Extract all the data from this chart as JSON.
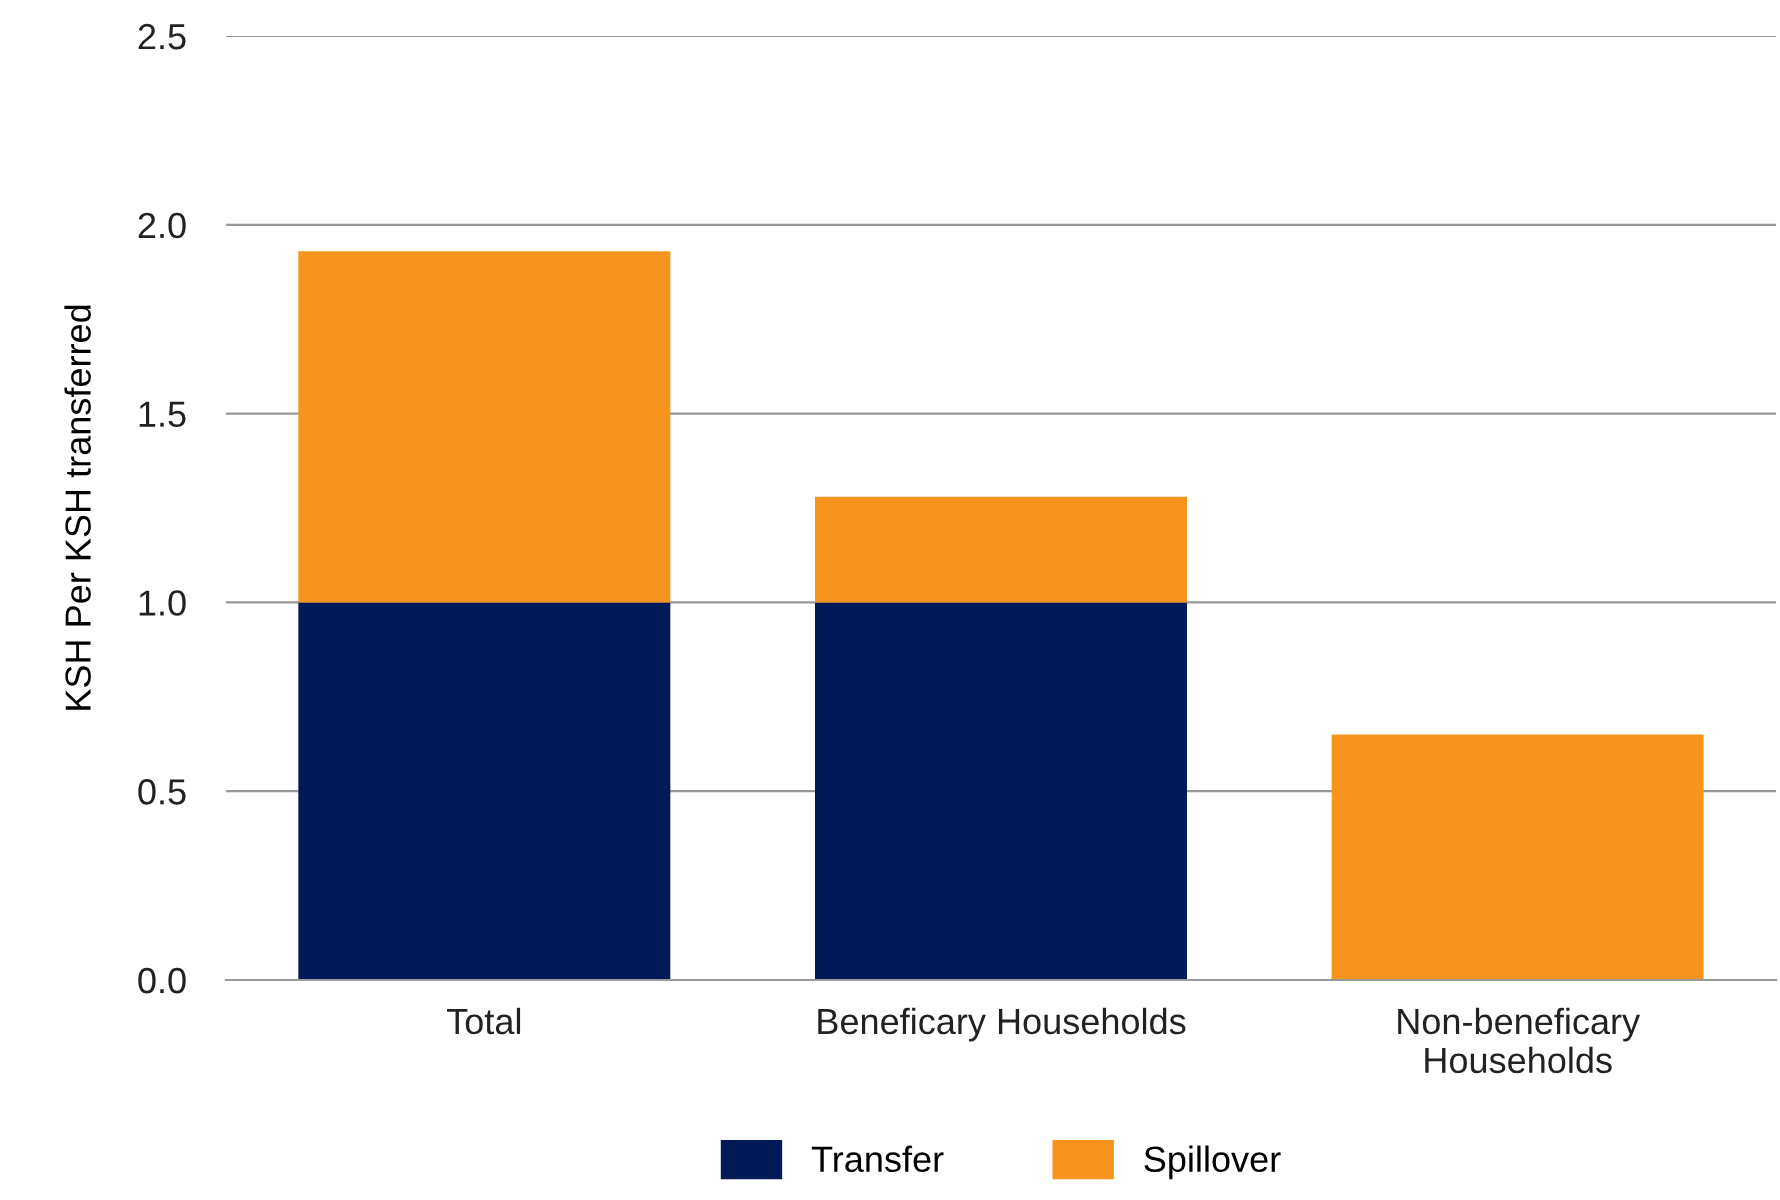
{
  "chart_data": {
    "type": "bar",
    "stacked": true,
    "ylabel": "KSH Per KSH transferred",
    "categories": [
      "Total",
      "Beneficary Households",
      "Non-beneficary\nHouseholds"
    ],
    "series": [
      {
        "name": "Transfer",
        "color": "#001a57",
        "values": [
          1.0,
          1.0,
          0
        ]
      },
      {
        "name": "Spillover",
        "color": "#f7941d",
        "values": [
          0.93,
          0.28,
          0.65
        ]
      }
    ],
    "ylim": [
      0,
      2.5
    ],
    "yticks": [
      {
        "value": 0,
        "label": "0.0"
      },
      {
        "value": 0.5,
        "label": "0.5"
      },
      {
        "value": 1,
        "label": "1.0"
      },
      {
        "value": 1.5,
        "label": "1.5"
      },
      {
        "value": 2,
        "label": "2.0"
      },
      {
        "value": 2.5,
        "label": "2.5"
      }
    ],
    "grid": "y",
    "legend": "bottom"
  }
}
